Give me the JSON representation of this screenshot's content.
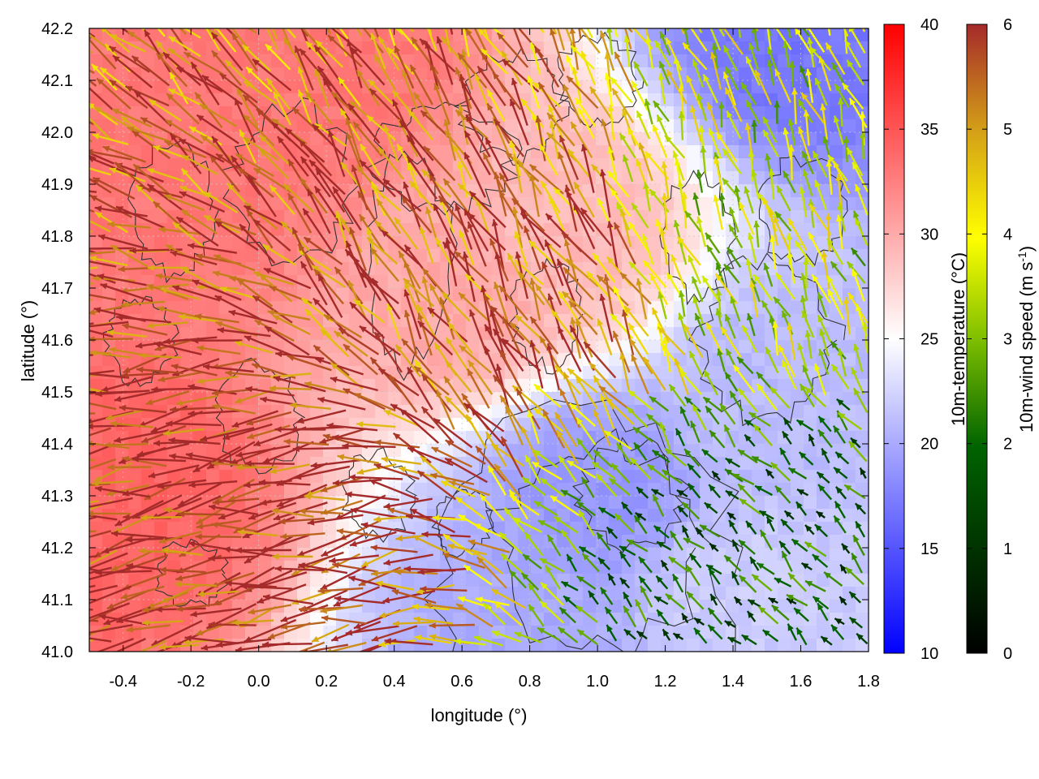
{
  "chart_data": {
    "type": "heatmap",
    "xlabel": "longitude (°)",
    "ylabel": "latitude (°)",
    "xlim": [
      -0.5,
      1.8
    ],
    "ylim": [
      41.0,
      42.2
    ],
    "x_ticks": [
      "-0.4",
      "-0.2",
      "0.0",
      "0.2",
      "0.4",
      "0.6",
      "0.8",
      "1.0",
      "1.2",
      "1.4",
      "1.6",
      "1.8"
    ],
    "x_tick_values": [
      -0.4,
      -0.2,
      0.0,
      0.2,
      0.4,
      0.6,
      0.8,
      1.0,
      1.2,
      1.4,
      1.6,
      1.8
    ],
    "y_ticks": [
      "41.0",
      "41.1",
      "41.2",
      "41.3",
      "41.4",
      "41.5",
      "41.6",
      "41.7",
      "41.8",
      "41.9",
      "42.0",
      "42.1",
      "42.2"
    ],
    "y_tick_values": [
      41.0,
      41.1,
      41.2,
      41.3,
      41.4,
      41.5,
      41.6,
      41.7,
      41.8,
      41.9,
      42.0,
      42.1,
      42.2
    ],
    "grid": true,
    "temperature_colorbar": {
      "label": "10m-temperature (°C)",
      "range": [
        10,
        40
      ],
      "ticks": [
        "10",
        "15",
        "20",
        "25",
        "30",
        "35",
        "40"
      ],
      "tick_values": [
        10,
        15,
        20,
        25,
        30,
        35,
        40
      ],
      "colors": [
        "#0000ff",
        "#ffffff",
        "#ff0000"
      ]
    },
    "wind_colorbar": {
      "label_main": "10m-wind speed (m s",
      "label_sup": "-1",
      "label_end": ")",
      "range": [
        0,
        6
      ],
      "ticks": [
        "0",
        "1",
        "2",
        "3",
        "4",
        "5",
        "6"
      ],
      "tick_values": [
        0,
        1,
        2,
        3,
        4,
        5,
        6
      ],
      "colors": [
        "#000000",
        "#006400",
        "#7fbf00",
        "#ffff00",
        "#d4a017",
        "#c06020",
        "#a52a2a"
      ]
    },
    "temperature_field": {
      "description_points": [
        {
          "lon": -0.4,
          "lat": 41.3,
          "t": 34
        },
        {
          "lon": -0.2,
          "lat": 41.9,
          "t": 33
        },
        {
          "lon": 0.2,
          "lat": 42.1,
          "t": 33
        },
        {
          "lon": 0.6,
          "lat": 41.7,
          "t": 30
        },
        {
          "lon": 0.9,
          "lat": 41.8,
          "t": 29
        },
        {
          "lon": 1.0,
          "lat": 41.3,
          "t": 19
        },
        {
          "lon": 1.5,
          "lat": 41.5,
          "t": 21
        },
        {
          "lon": 1.6,
          "lat": 42.2,
          "t": 17
        },
        {
          "lon": 1.4,
          "lat": 41.1,
          "t": 22
        },
        {
          "lon": 0.8,
          "lat": 41.05,
          "t": 20
        }
      ]
    },
    "wind_regions": [
      {
        "lon_range": [
          -0.5,
          0.5
        ],
        "lat_range": [
          41.0,
          41.5
        ],
        "speed": 6,
        "direction_deg": 190
      },
      {
        "lon_range": [
          0.3,
          1.2
        ],
        "lat_range": [
          41.5,
          41.9
        ],
        "speed": 5.5,
        "direction_deg": 120
      },
      {
        "lon_range": [
          1.2,
          1.8
        ],
        "lat_range": [
          41.0,
          41.3
        ],
        "speed": 1.8,
        "direction_deg": 135
      },
      {
        "lon_range": [
          1.2,
          1.8
        ],
        "lat_range": [
          41.5,
          42.1
        ],
        "speed": 3.5,
        "direction_deg": 110
      }
    ]
  }
}
